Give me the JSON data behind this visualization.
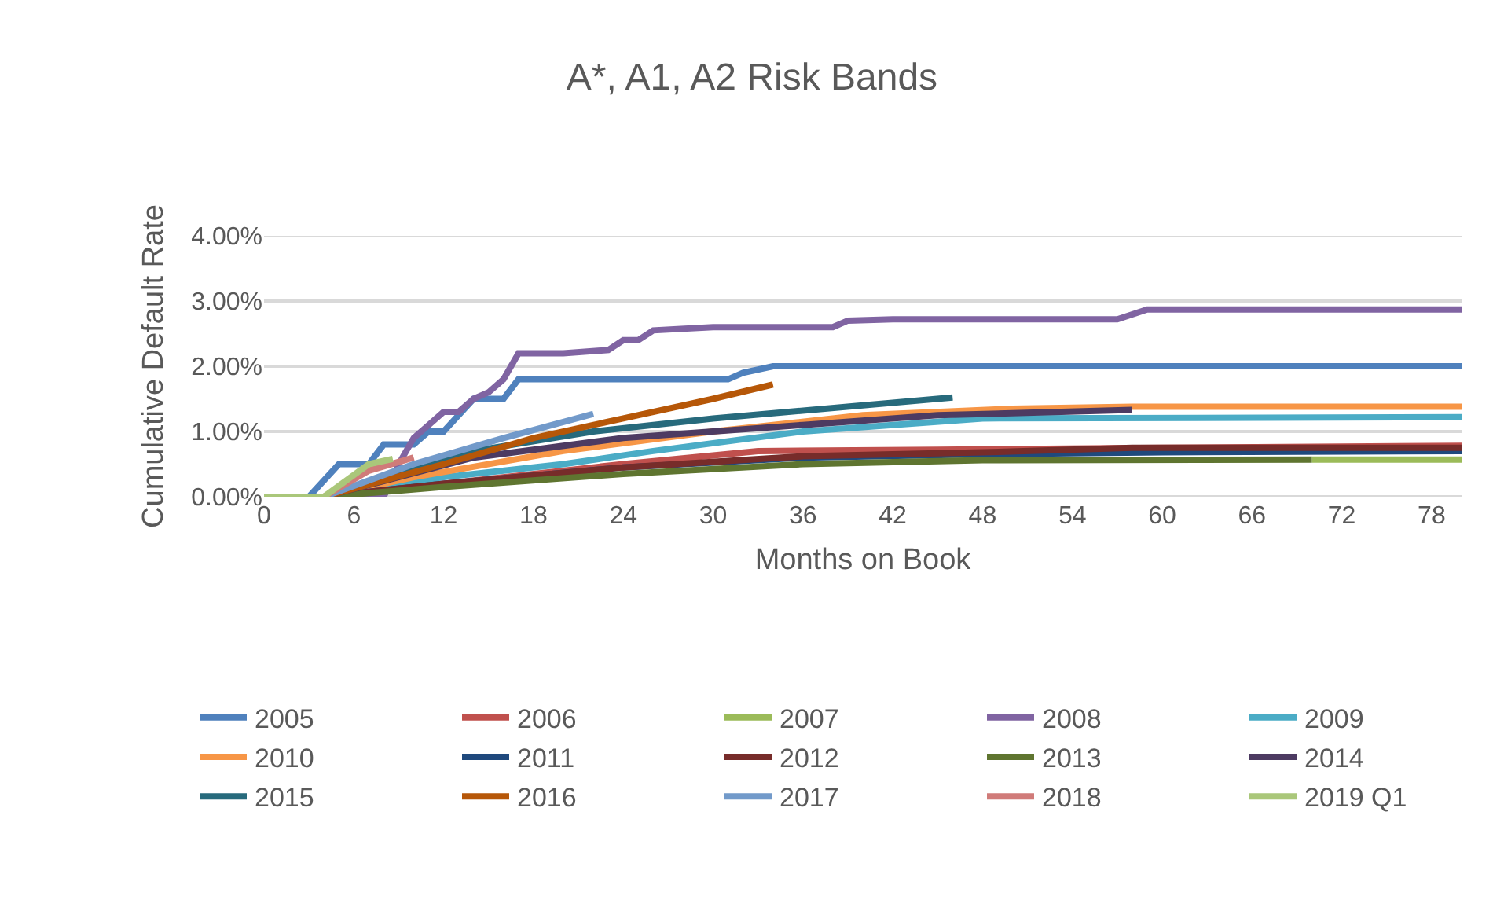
{
  "chart_data": {
    "type": "line",
    "title": "A*, A1, A2 Risk Bands",
    "xlabel": "Months on Book",
    "ylabel": "Cumulative Default Rate",
    "xlim": [
      0,
      80
    ],
    "xticks": [
      0,
      6,
      12,
      18,
      24,
      30,
      36,
      42,
      48,
      54,
      60,
      66,
      72,
      78
    ],
    "ylim": [
      0,
      4
    ],
    "yticks": [
      {
        "value": 0,
        "label": "0.00%"
      },
      {
        "value": 1,
        "label": "1.00%"
      },
      {
        "value": 2,
        "label": "2.00%"
      },
      {
        "value": 3,
        "label": "3.00%"
      },
      {
        "value": 4,
        "label": "4.00%"
      }
    ],
    "grid": "y",
    "legend": "bottom",
    "marker": "none",
    "line_style": "solid",
    "series": [
      {
        "name": "2005",
        "color": "#4f81bd",
        "x": [
          0,
          3,
          5,
          7,
          8,
          10,
          11,
          12,
          14,
          16,
          17,
          31,
          32,
          34,
          80
        ],
        "values": [
          0,
          0,
          0.5,
          0.5,
          0.8,
          0.8,
          1.0,
          1.0,
          1.5,
          1.5,
          1.8,
          1.8,
          1.9,
          2.0,
          2.0
        ]
      },
      {
        "name": "2006",
        "color": "#c0504d",
        "x": [
          0,
          4,
          12,
          24,
          33,
          45,
          60,
          80
        ],
        "values": [
          0,
          0,
          0.2,
          0.5,
          0.7,
          0.72,
          0.75,
          0.78
        ]
      },
      {
        "name": "2007",
        "color": "#9bbb59",
        "x": [
          0,
          4,
          12,
          24,
          36,
          48,
          70,
          80
        ],
        "values": [
          0,
          0,
          null,
          null,
          null,
          null,
          0.57,
          0.57
        ]
      },
      {
        "name": "2008",
        "color": "#8064a2",
        "x": [
          0,
          8,
          9,
          10,
          11,
          12,
          13,
          14,
          15,
          16,
          17,
          20,
          23,
          24,
          25,
          26,
          30,
          38,
          39,
          42,
          57,
          59,
          80
        ],
        "values": [
          0,
          0,
          0.5,
          0.9,
          1.1,
          1.3,
          1.3,
          1.5,
          1.6,
          1.8,
          2.2,
          2.2,
          2.25,
          2.4,
          2.4,
          2.55,
          2.6,
          2.6,
          2.7,
          2.72,
          2.72,
          2.87,
          2.87
        ]
      },
      {
        "name": "2009",
        "color": "#4bacc6",
        "x": [
          0,
          4,
          12,
          20,
          26,
          36,
          48,
          80
        ],
        "values": [
          0,
          0,
          0.3,
          0.5,
          0.7,
          1.0,
          1.2,
          1.22
        ]
      },
      {
        "name": "2010",
        "color": "#f79646",
        "x": [
          0,
          4,
          10,
          20,
          30,
          40,
          50,
          58,
          80
        ],
        "values": [
          0,
          0,
          0.3,
          0.7,
          1.0,
          1.25,
          1.35,
          1.38,
          1.38
        ]
      },
      {
        "name": "2011",
        "color": "#1f497d",
        "x": [
          0,
          4,
          12,
          24,
          36,
          48,
          60,
          80
        ],
        "values": [
          0,
          0,
          0.2,
          0.45,
          0.6,
          0.65,
          0.68,
          0.7
        ]
      },
      {
        "name": "2012",
        "color": "#772c2a",
        "x": [
          0,
          4,
          12,
          24,
          36,
          48,
          58,
          80
        ],
        "values": [
          0,
          0,
          0.2,
          0.45,
          0.62,
          0.68,
          0.75,
          0.75
        ]
      },
      {
        "name": "2013",
        "color": "#5f7530",
        "x": [
          0,
          4,
          12,
          24,
          36,
          48,
          70
        ],
        "values": [
          0,
          0,
          0.15,
          0.35,
          0.5,
          0.56,
          0.57
        ]
      },
      {
        "name": "2014",
        "color": "#4d3b62",
        "x": [
          0,
          4,
          14,
          24,
          36,
          45,
          58
        ],
        "values": [
          0,
          0,
          0.6,
          0.9,
          1.1,
          1.25,
          1.33
        ]
      },
      {
        "name": "2015",
        "color": "#276a7c",
        "x": [
          0,
          4,
          14,
          22,
          30,
          40,
          46
        ],
        "values": [
          0,
          0,
          0.7,
          1.0,
          1.2,
          1.4,
          1.52
        ]
      },
      {
        "name": "2016",
        "color": "#b65708",
        "x": [
          0,
          4,
          12,
          18,
          24,
          30,
          34
        ],
        "values": [
          0,
          0,
          0.5,
          0.9,
          1.2,
          1.5,
          1.72
        ]
      },
      {
        "name": "2017",
        "color": "#729aca",
        "x": [
          0,
          4,
          10,
          16,
          22
        ],
        "values": [
          0,
          0,
          0.5,
          0.9,
          1.27
        ]
      },
      {
        "name": "2018",
        "color": "#d07b79",
        "x": [
          0,
          4,
          7,
          10
        ],
        "values": [
          0,
          0,
          0.4,
          0.6
        ]
      },
      {
        "name": "2019 Q1",
        "color": "#aac77a",
        "x": [
          0,
          4,
          7,
          8.6
        ],
        "values": [
          0,
          0,
          0.5,
          0.58
        ]
      }
    ]
  }
}
